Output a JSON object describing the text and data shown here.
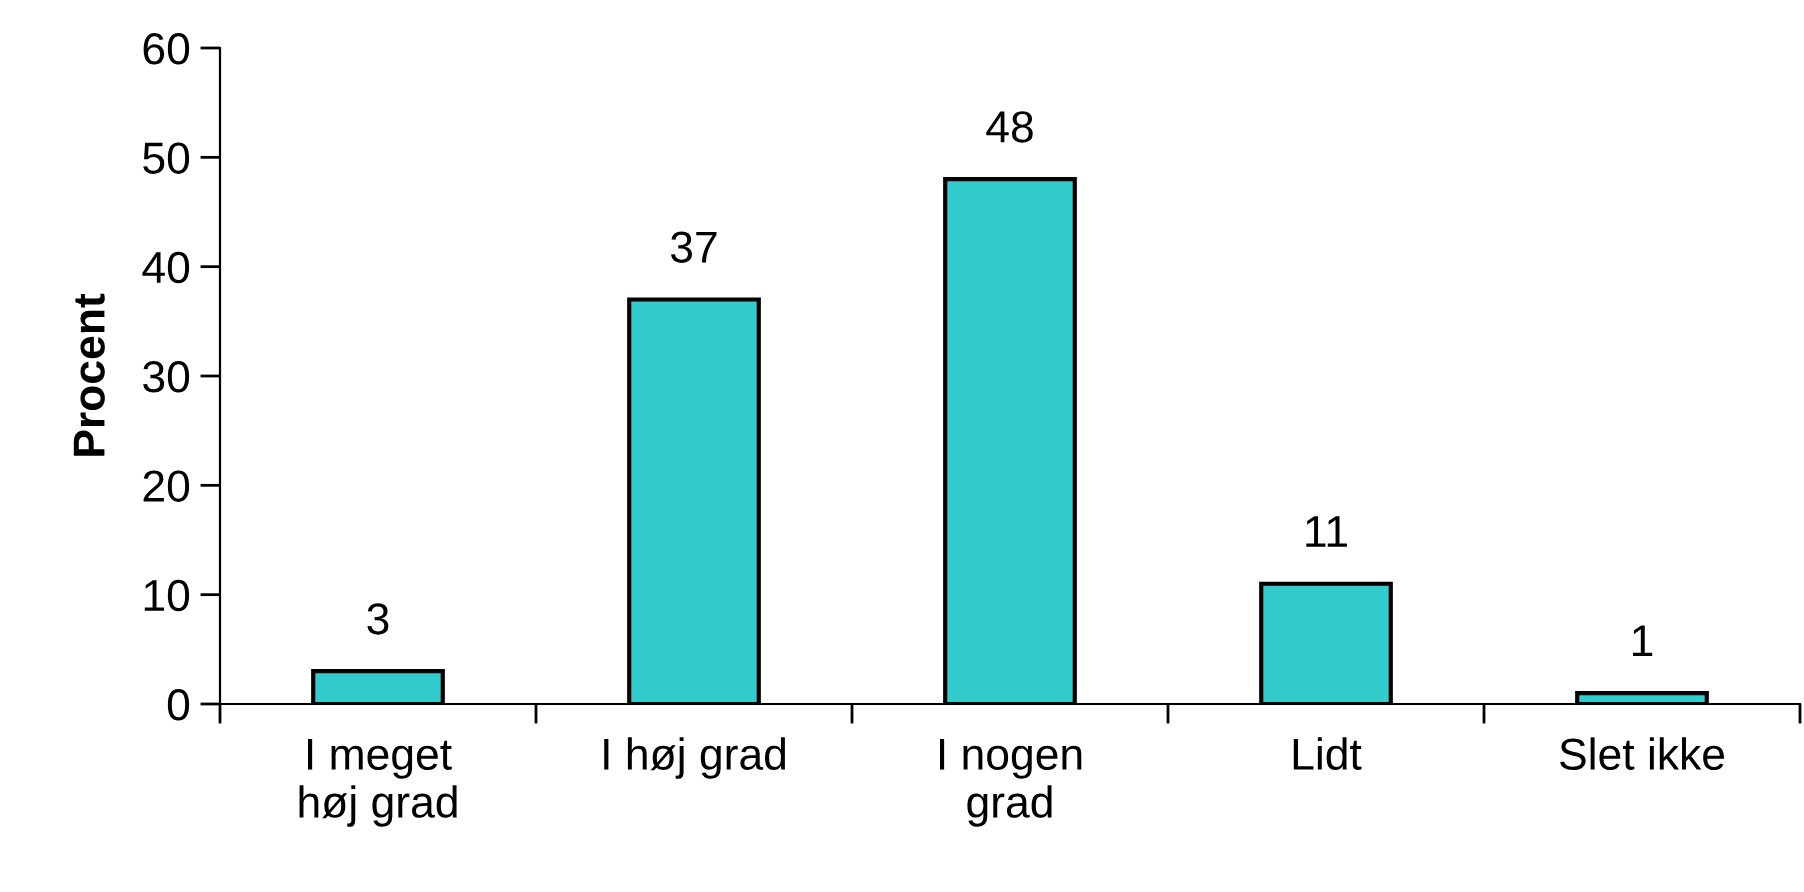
{
  "chart_data": {
    "type": "bar",
    "ylabel": "Procent",
    "categories": [
      "I meget\nhøj grad",
      "I høj grad",
      "I nogen\ngrad",
      "Lidt",
      "Slet ikke"
    ],
    "values": [
      3,
      37,
      48,
      11,
      1
    ],
    "color": "#33cccc",
    "ylim": [
      0,
      60
    ],
    "yticks": [
      0,
      10,
      20,
      30,
      40,
      50,
      60
    ],
    "grid": false,
    "data_labels": true
  }
}
